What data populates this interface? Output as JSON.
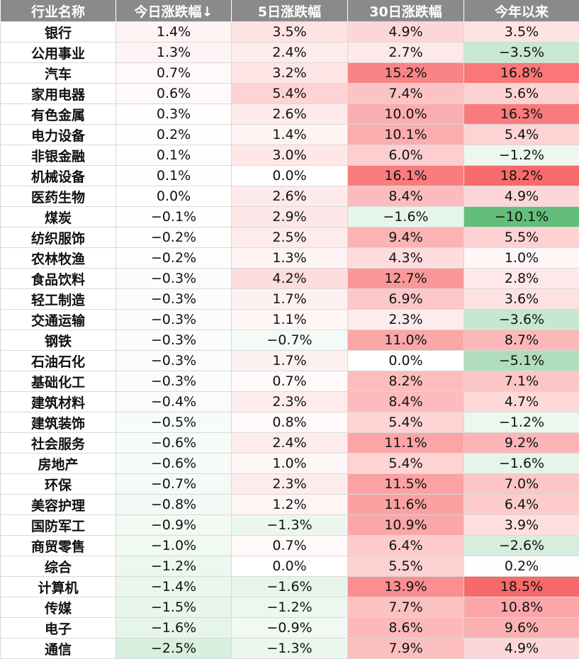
{
  "chart_data": {
    "type": "heatmap",
    "columns": [
      "行业名称",
      "今日涨跌幅↓",
      "5日涨跌幅",
      "30日涨跌幅",
      "今年以来"
    ],
    "rows": [
      {
        "industry": "银行",
        "values": [
          "1.4%",
          "3.5%",
          "4.9%",
          "3.5%"
        ]
      },
      {
        "industry": "公用事业",
        "values": [
          "1.3%",
          "2.4%",
          "2.7%",
          "−3.5%"
        ]
      },
      {
        "industry": "汽车",
        "values": [
          "0.7%",
          "3.2%",
          "15.2%",
          "16.8%"
        ]
      },
      {
        "industry": "家用电器",
        "values": [
          "0.6%",
          "5.4%",
          "7.4%",
          "5.6%"
        ]
      },
      {
        "industry": "有色金属",
        "values": [
          "0.3%",
          "2.6%",
          "10.0%",
          "16.3%"
        ]
      },
      {
        "industry": "电力设备",
        "values": [
          "0.2%",
          "1.4%",
          "10.1%",
          "5.4%"
        ]
      },
      {
        "industry": "非银金融",
        "values": [
          "0.1%",
          "3.0%",
          "6.0%",
          "−1.2%"
        ]
      },
      {
        "industry": "机械设备",
        "values": [
          "0.1%",
          "0.0%",
          "16.1%",
          "18.2%"
        ]
      },
      {
        "industry": "医药生物",
        "values": [
          "0.0%",
          "2.6%",
          "8.4%",
          "4.9%"
        ]
      },
      {
        "industry": "煤炭",
        "values": [
          "−0.1%",
          "2.9%",
          "−1.6%",
          "−10.1%"
        ]
      },
      {
        "industry": "纺织服饰",
        "values": [
          "−0.2%",
          "2.5%",
          "9.4%",
          "5.5%"
        ]
      },
      {
        "industry": "农林牧渔",
        "values": [
          "−0.2%",
          "1.3%",
          "4.3%",
          "1.0%"
        ]
      },
      {
        "industry": "食品饮料",
        "values": [
          "−0.3%",
          "4.2%",
          "12.7%",
          "2.8%"
        ]
      },
      {
        "industry": "轻工制造",
        "values": [
          "−0.3%",
          "1.7%",
          "6.9%",
          "3.6%"
        ]
      },
      {
        "industry": "交通运输",
        "values": [
          "−0.3%",
          "1.1%",
          "2.3%",
          "−3.6%"
        ]
      },
      {
        "industry": "钢铁",
        "values": [
          "−0.3%",
          "−0.7%",
          "11.0%",
          "8.7%"
        ]
      },
      {
        "industry": "石油石化",
        "values": [
          "−0.3%",
          "1.7%",
          "0.0%",
          "−5.1%"
        ]
      },
      {
        "industry": "基础化工",
        "values": [
          "−0.3%",
          "0.7%",
          "8.2%",
          "7.1%"
        ]
      },
      {
        "industry": "建筑材料",
        "values": [
          "−0.4%",
          "2.3%",
          "8.4%",
          "4.7%"
        ]
      },
      {
        "industry": "建筑装饰",
        "values": [
          "−0.5%",
          "0.8%",
          "5.4%",
          "−1.2%"
        ]
      },
      {
        "industry": "社会服务",
        "values": [
          "−0.6%",
          "2.4%",
          "11.1%",
          "9.2%"
        ]
      },
      {
        "industry": "房地产",
        "values": [
          "−0.6%",
          "1.0%",
          "5.4%",
          "−1.6%"
        ]
      },
      {
        "industry": "环保",
        "values": [
          "−0.7%",
          "2.3%",
          "11.5%",
          "7.0%"
        ]
      },
      {
        "industry": "美容护理",
        "values": [
          "−0.8%",
          "1.2%",
          "11.6%",
          "6.4%"
        ]
      },
      {
        "industry": "国防军工",
        "values": [
          "−0.9%",
          "−1.3%",
          "10.9%",
          "3.9%"
        ]
      },
      {
        "industry": "商贸零售",
        "values": [
          "−1.0%",
          "0.7%",
          "6.4%",
          "−2.6%"
        ]
      },
      {
        "industry": "综合",
        "values": [
          "−1.2%",
          "0.0%",
          "5.5%",
          "0.2%"
        ]
      },
      {
        "industry": "计算机",
        "values": [
          "−1.4%",
          "−1.6%",
          "13.9%",
          "18.5%"
        ]
      },
      {
        "industry": "传媒",
        "values": [
          "−1.5%",
          "−1.2%",
          "7.7%",
          "10.8%"
        ]
      },
      {
        "industry": "电子",
        "values": [
          "−1.6%",
          "−0.9%",
          "8.6%",
          "9.6%"
        ]
      },
      {
        "industry": "通信",
        "values": [
          "−2.5%",
          "−1.3%",
          "7.9%",
          "4.9%"
        ]
      }
    ],
    "colors": {
      "header_bg": "#8a8a8a",
      "positive": "#f8696b",
      "negative": "#63be7b",
      "neutral": "#ffffff"
    }
  }
}
